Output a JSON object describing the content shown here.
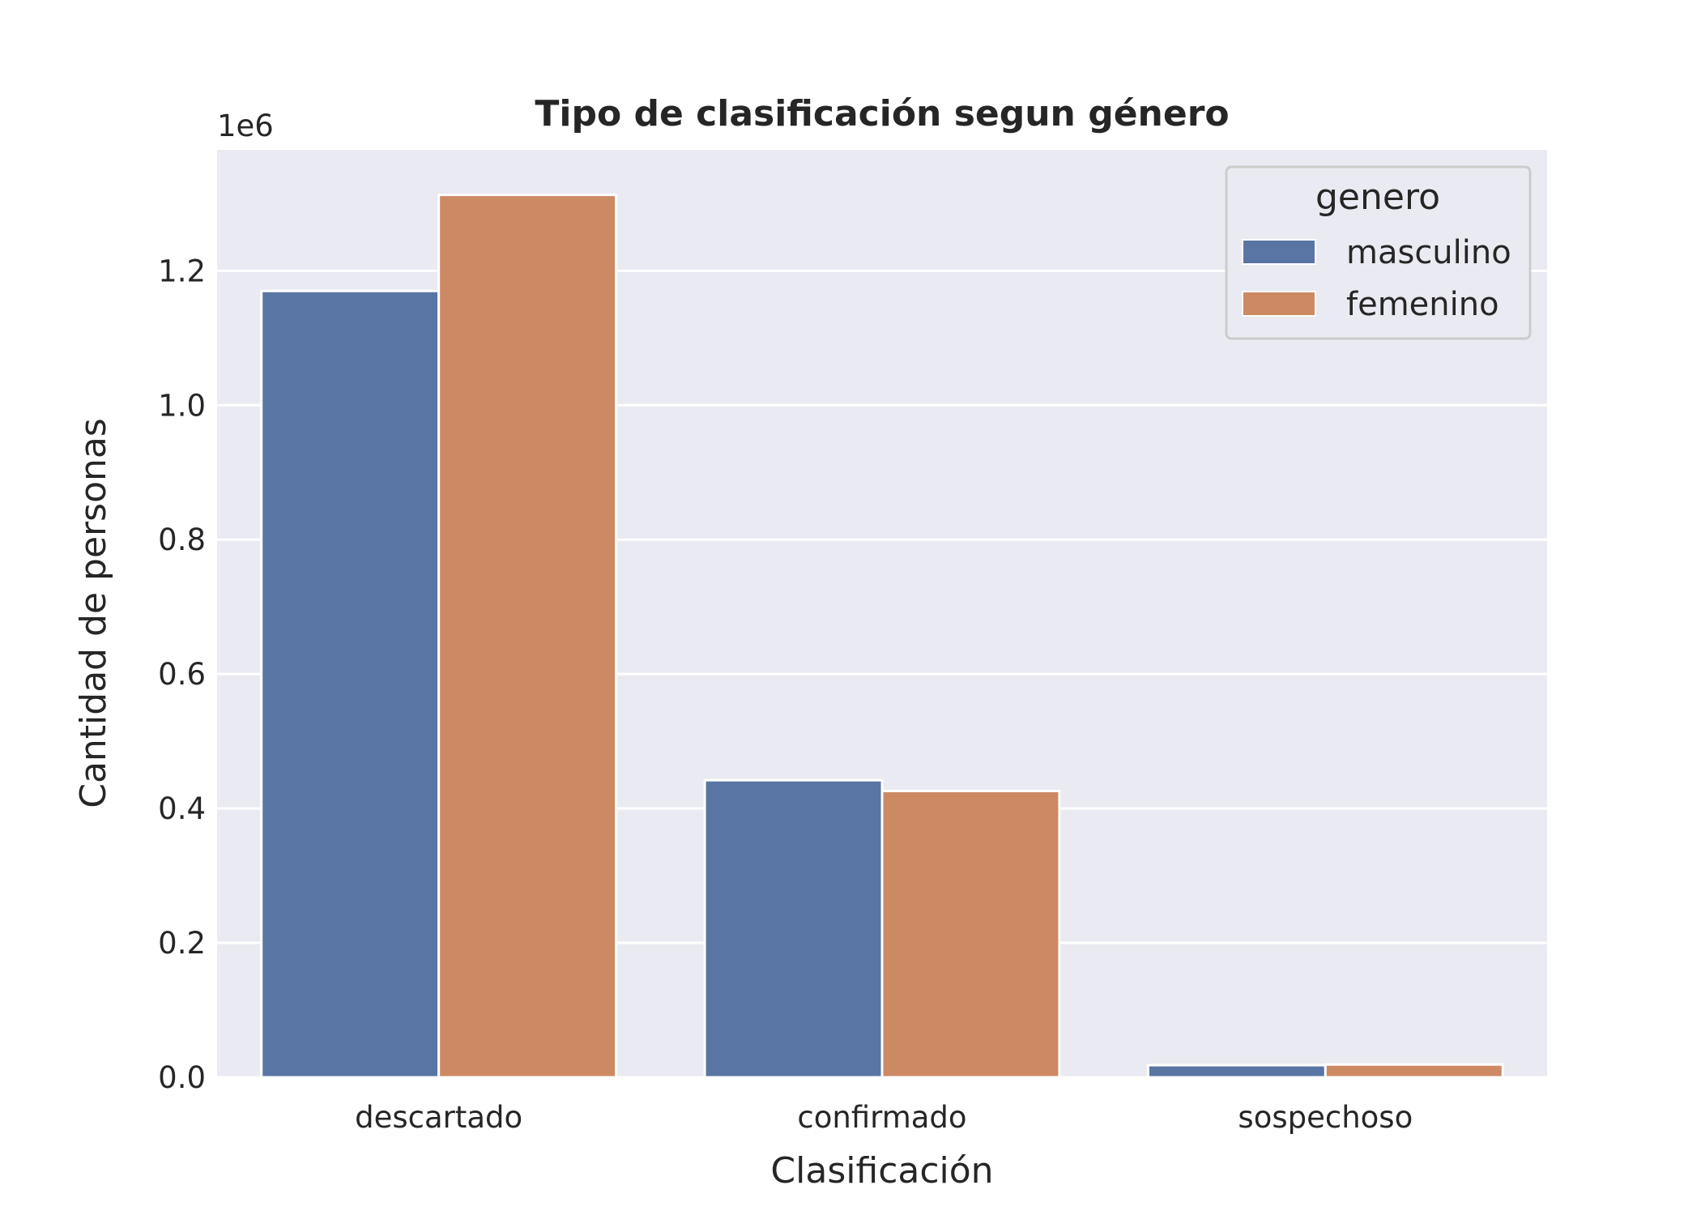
{
  "chart_data": {
    "type": "bar",
    "title": "Tipo de clasificación segun género",
    "xlabel": "Clasificación",
    "ylabel": "Cantidad de personas",
    "y_offset_label": "1e6",
    "y_scale_factor": 1000000,
    "ylim": [
      0,
      1380000
    ],
    "yticks": [
      0,
      200000,
      400000,
      600000,
      800000,
      1000000,
      1200000
    ],
    "ytick_labels": [
      "0.0",
      "0.2",
      "0.4",
      "0.6",
      "0.8",
      "1.0",
      "1.2"
    ],
    "categories": [
      "descartado",
      "confirmado",
      "sospechoso"
    ],
    "series": [
      {
        "name": "masculino",
        "color": "#5975a4",
        "values": [
          1170000,
          442000,
          18000
        ]
      },
      {
        "name": "femenino",
        "color": "#cc8963",
        "values": [
          1313000,
          426000,
          19000
        ]
      }
    ],
    "legend": {
      "title": "genero",
      "placement": "top-right"
    },
    "grid": true,
    "plot_background": "#eaeaf2",
    "grid_color": "#ffffff"
  }
}
